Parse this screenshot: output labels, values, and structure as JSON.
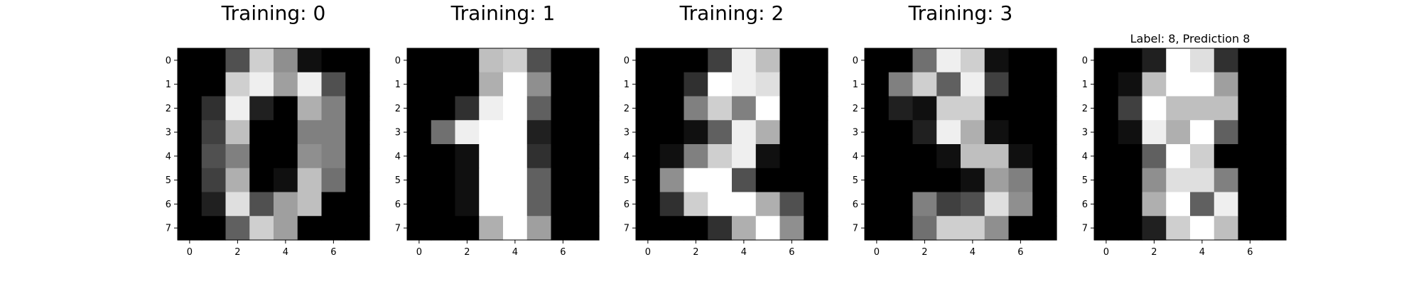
{
  "chart_data": [
    {
      "type": "heatmap",
      "title": "Training: 0",
      "colormap": "gray_r",
      "value_range": [
        0,
        16
      ],
      "x_ticks": [
        "0",
        "2",
        "4",
        "6"
      ],
      "y_ticks": [
        "0",
        "1",
        "2",
        "3",
        "4",
        "5",
        "6",
        "7"
      ],
      "grid": false,
      "values": [
        [
          0,
          0,
          5,
          13,
          9,
          1,
          0,
          0
        ],
        [
          0,
          0,
          13,
          15,
          10,
          15,
          5,
          0
        ],
        [
          0,
          3,
          15,
          2,
          0,
          11,
          8,
          0
        ],
        [
          0,
          4,
          12,
          0,
          0,
          8,
          8,
          0
        ],
        [
          0,
          5,
          8,
          0,
          0,
          9,
          8,
          0
        ],
        [
          0,
          4,
          11,
          0,
          1,
          12,
          7,
          0
        ],
        [
          0,
          2,
          14,
          5,
          10,
          12,
          0,
          0
        ],
        [
          0,
          0,
          6,
          13,
          10,
          0,
          0,
          0
        ]
      ]
    },
    {
      "type": "heatmap",
      "title": "Training: 1",
      "colormap": "gray_r",
      "value_range": [
        0,
        16
      ],
      "x_ticks": [
        "0",
        "2",
        "4",
        "6"
      ],
      "y_ticks": [
        "0",
        "1",
        "2",
        "3",
        "4",
        "5",
        "6",
        "7"
      ],
      "grid": false,
      "values": [
        [
          0,
          0,
          0,
          12,
          13,
          5,
          0,
          0
        ],
        [
          0,
          0,
          0,
          11,
          16,
          9,
          0,
          0
        ],
        [
          0,
          0,
          3,
          15,
          16,
          6,
          0,
          0
        ],
        [
          0,
          7,
          15,
          16,
          16,
          2,
          0,
          0
        ],
        [
          0,
          0,
          1,
          16,
          16,
          3,
          0,
          0
        ],
        [
          0,
          0,
          1,
          16,
          16,
          6,
          0,
          0
        ],
        [
          0,
          0,
          1,
          16,
          16,
          6,
          0,
          0
        ],
        [
          0,
          0,
          0,
          11,
          16,
          10,
          0,
          0
        ]
      ]
    },
    {
      "type": "heatmap",
      "title": "Training: 2",
      "colormap": "gray_r",
      "value_range": [
        0,
        16
      ],
      "x_ticks": [
        "0",
        "2",
        "4",
        "6"
      ],
      "y_ticks": [
        "0",
        "1",
        "2",
        "3",
        "4",
        "5",
        "6",
        "7"
      ],
      "grid": false,
      "values": [
        [
          0,
          0,
          0,
          4,
          15,
          12,
          0,
          0
        ],
        [
          0,
          0,
          3,
          16,
          15,
          14,
          0,
          0
        ],
        [
          0,
          0,
          8,
          13,
          8,
          16,
          0,
          0
        ],
        [
          0,
          0,
          1,
          6,
          15,
          11,
          0,
          0
        ],
        [
          0,
          1,
          8,
          13,
          15,
          1,
          0,
          0
        ],
        [
          0,
          9,
          16,
          16,
          5,
          0,
          0,
          0
        ],
        [
          0,
          3,
          13,
          16,
          16,
          11,
          5,
          0
        ],
        [
          0,
          0,
          0,
          3,
          11,
          16,
          9,
          0
        ]
      ]
    },
    {
      "type": "heatmap",
      "title": "Training: 3",
      "colormap": "gray_r",
      "value_range": [
        0,
        16
      ],
      "x_ticks": [
        "0",
        "2",
        "4",
        "6"
      ],
      "y_ticks": [
        "0",
        "1",
        "2",
        "3",
        "4",
        "5",
        "6",
        "7"
      ],
      "grid": false,
      "values": [
        [
          0,
          0,
          7,
          15,
          13,
          1,
          0,
          0
        ],
        [
          0,
          8,
          13,
          6,
          15,
          4,
          0,
          0
        ],
        [
          0,
          2,
          1,
          13,
          13,
          0,
          0,
          0
        ],
        [
          0,
          0,
          2,
          15,
          11,
          1,
          0,
          0
        ],
        [
          0,
          0,
          0,
          1,
          12,
          12,
          1,
          0
        ],
        [
          0,
          0,
          0,
          0,
          1,
          10,
          8,
          0
        ],
        [
          0,
          0,
          8,
          4,
          5,
          14,
          9,
          0
        ],
        [
          0,
          0,
          7,
          13,
          13,
          9,
          0,
          0
        ]
      ]
    },
    {
      "type": "heatmap",
      "title": "Label: 8, Prediction 8",
      "colormap": "gray_r",
      "value_range": [
        0,
        16
      ],
      "x_ticks": [
        "0",
        "2",
        "4",
        "6"
      ],
      "y_ticks": [
        "0",
        "1",
        "2",
        "3",
        "4",
        "5",
        "6",
        "7"
      ],
      "grid": false,
      "values": [
        [
          0,
          0,
          2,
          16,
          14,
          3,
          0,
          0
        ],
        [
          0,
          1,
          12,
          16,
          16,
          10,
          0,
          0
        ],
        [
          0,
          4,
          16,
          12,
          12,
          12,
          0,
          0
        ],
        [
          0,
          1,
          15,
          11,
          16,
          6,
          0,
          0
        ],
        [
          0,
          0,
          6,
          16,
          13,
          0,
          0,
          0
        ],
        [
          0,
          0,
          9,
          14,
          14,
          8,
          0,
          0
        ],
        [
          0,
          0,
          11,
          16,
          6,
          15,
          0,
          0
        ],
        [
          0,
          0,
          2,
          13,
          16,
          12,
          0,
          0
        ]
      ]
    }
  ]
}
